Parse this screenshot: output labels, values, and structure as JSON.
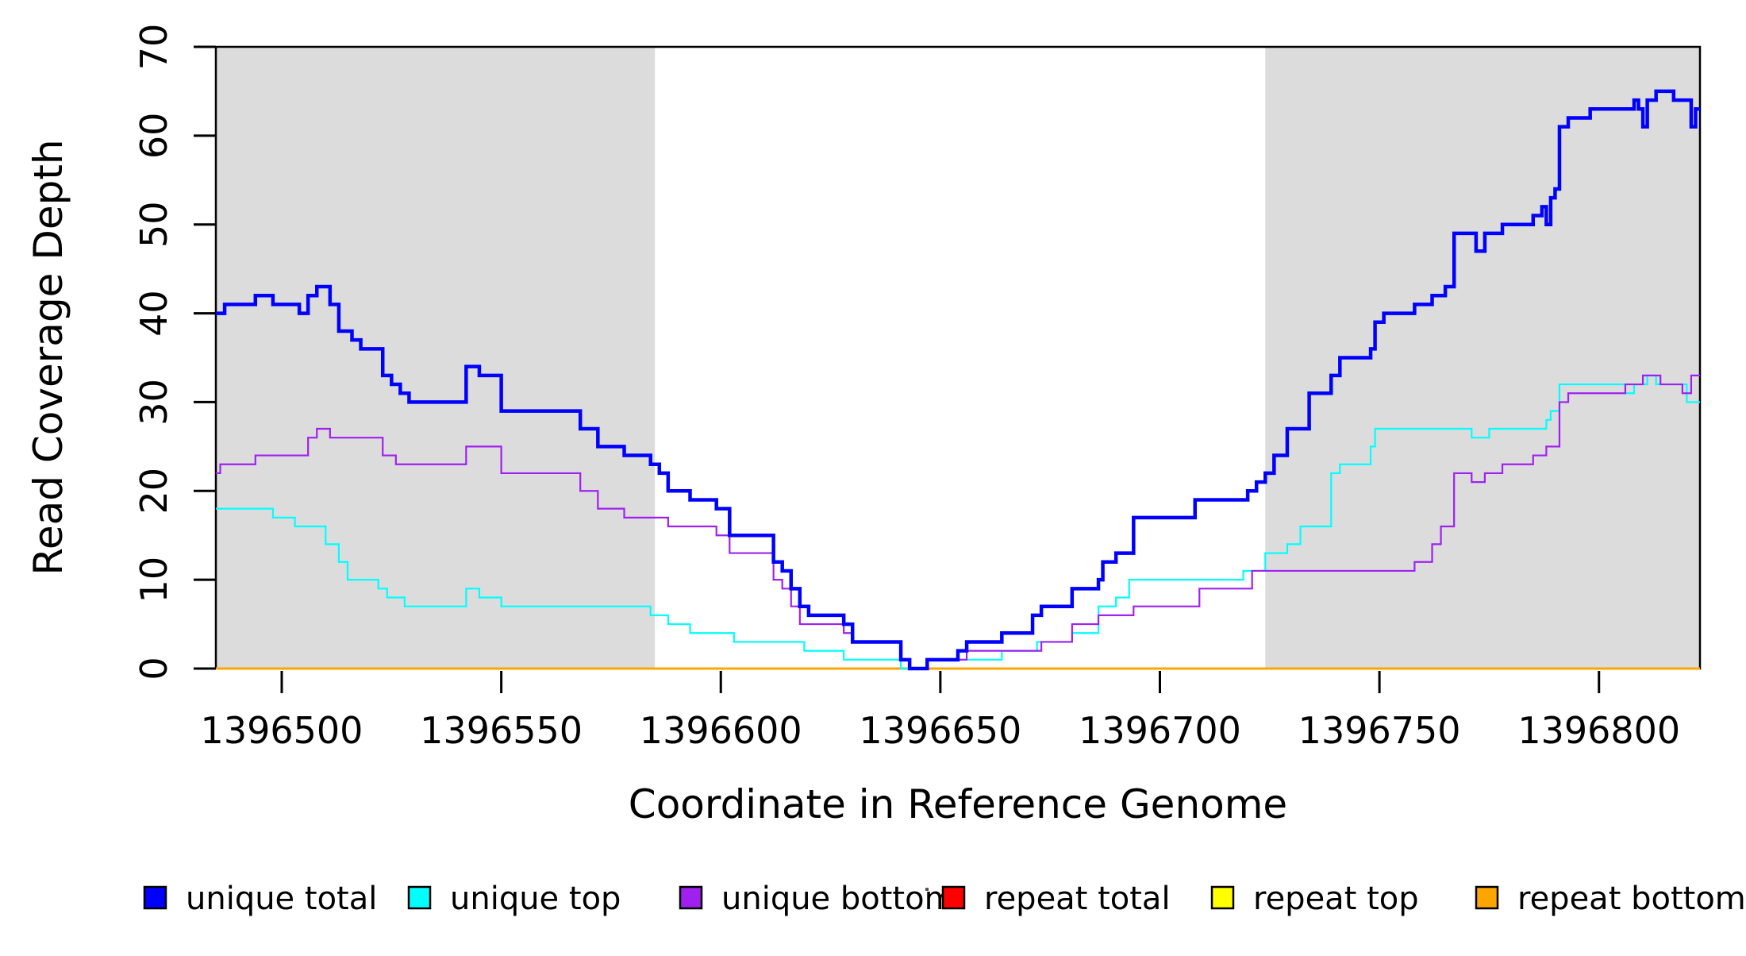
{
  "figure": {
    "background": "#ffffff",
    "plot_area_fill": "#ffffff",
    "shaded_fill": "#dcdcdc",
    "axis_color": "#000000"
  },
  "chart_data": {
    "type": "line",
    "subtype": "step",
    "title": "",
    "xlabel": "Coordinate in Reference Genome",
    "ylabel": "Read Coverage Depth",
    "xlim": [
      1396485,
      1396823
    ],
    "ylim": [
      0,
      70
    ],
    "x_ticks": [
      1396500,
      1396550,
      1396600,
      1396650,
      1396700,
      1396750,
      1396800
    ],
    "y_ticks": [
      0,
      10,
      20,
      30,
      40,
      50,
      60,
      70
    ],
    "grid": false,
    "legend_position": "bottom",
    "shaded_regions": [
      {
        "x0": 1396485,
        "x1": 1396585,
        "color": "#dcdcdc"
      },
      {
        "x0": 1396724,
        "x1": 1396823,
        "color": "#dcdcdc"
      }
    ],
    "series": [
      {
        "name": "repeat total",
        "color": "#ff0000",
        "width": 2.2,
        "steps": [
          [
            1396485,
            0
          ]
        ]
      },
      {
        "name": "repeat top",
        "color": "#ffff00",
        "width": 2.2,
        "steps": [
          [
            1396485,
            0
          ]
        ]
      },
      {
        "name": "repeat bottom",
        "color": "#ffa500",
        "width": 3,
        "steps": [
          [
            1396485,
            0
          ]
        ]
      },
      {
        "name": "unique top",
        "color": "#00ffff",
        "width": 2.2,
        "steps": [
          [
            1396485,
            18
          ],
          [
            1396498,
            17
          ],
          [
            1396503,
            16
          ],
          [
            1396510,
            14
          ],
          [
            1396513,
            12
          ],
          [
            1396515,
            10
          ],
          [
            1396522,
            9
          ],
          [
            1396524,
            8
          ],
          [
            1396528,
            7
          ],
          [
            1396542,
            9
          ],
          [
            1396545,
            8
          ],
          [
            1396550,
            7
          ],
          [
            1396584,
            6
          ],
          [
            1396588,
            5
          ],
          [
            1396593,
            4
          ],
          [
            1396603,
            3
          ],
          [
            1396619,
            2
          ],
          [
            1396628,
            1
          ],
          [
            1396641,
            0
          ],
          [
            1396647,
            1
          ],
          [
            1396664,
            2
          ],
          [
            1396672,
            3
          ],
          [
            1396680,
            4
          ],
          [
            1396686,
            7
          ],
          [
            1396690,
            8
          ],
          [
            1396693,
            10
          ],
          [
            1396719,
            11
          ],
          [
            1396724,
            13
          ],
          [
            1396729,
            14
          ],
          [
            1396732,
            16
          ],
          [
            1396739,
            22
          ],
          [
            1396741,
            23
          ],
          [
            1396748,
            25
          ],
          [
            1396749,
            27
          ],
          [
            1396771,
            26
          ],
          [
            1396775,
            27
          ],
          [
            1396788,
            28
          ],
          [
            1396789,
            29
          ],
          [
            1396791,
            32
          ],
          [
            1396806,
            31
          ],
          [
            1396808,
            32
          ],
          [
            1396811,
            33
          ],
          [
            1396813,
            32
          ],
          [
            1396820,
            30
          ]
        ]
      },
      {
        "name": "unique bottom",
        "color": "#a020f0",
        "width": 2.2,
        "steps": [
          [
            1396485,
            22
          ],
          [
            1396486,
            23
          ],
          [
            1396494,
            24
          ],
          [
            1396506,
            26
          ],
          [
            1396508,
            27
          ],
          [
            1396511,
            26
          ],
          [
            1396523,
            24
          ],
          [
            1396526,
            23
          ],
          [
            1396542,
            25
          ],
          [
            1396550,
            22
          ],
          [
            1396568,
            20
          ],
          [
            1396572,
            18
          ],
          [
            1396578,
            17
          ],
          [
            1396588,
            16
          ],
          [
            1396599,
            15
          ],
          [
            1396602,
            13
          ],
          [
            1396612,
            10
          ],
          [
            1396614,
            9
          ],
          [
            1396616,
            7
          ],
          [
            1396618,
            5
          ],
          [
            1396628,
            4
          ],
          [
            1396630,
            3
          ],
          [
            1396641,
            1
          ],
          [
            1396643,
            0
          ],
          [
            1396647,
            1
          ],
          [
            1396656,
            2
          ],
          [
            1396673,
            3
          ],
          [
            1396680,
            5
          ],
          [
            1396686,
            6
          ],
          [
            1396694,
            7
          ],
          [
            1396709,
            9
          ],
          [
            1396721,
            11
          ],
          [
            1396758,
            12
          ],
          [
            1396762,
            14
          ],
          [
            1396764,
            16
          ],
          [
            1396767,
            22
          ],
          [
            1396771,
            21
          ],
          [
            1396774,
            22
          ],
          [
            1396778,
            23
          ],
          [
            1396785,
            24
          ],
          [
            1396788,
            25
          ],
          [
            1396791,
            30
          ],
          [
            1396793,
            31
          ],
          [
            1396806,
            32
          ],
          [
            1396810,
            33
          ],
          [
            1396814,
            32
          ],
          [
            1396819,
            31
          ],
          [
            1396821,
            33
          ]
        ]
      },
      {
        "name": "unique total",
        "color": "#0000ff",
        "width": 4.5,
        "steps": [
          [
            1396485,
            40
          ],
          [
            1396487,
            41
          ],
          [
            1396494,
            42
          ],
          [
            1396498,
            41
          ],
          [
            1396504,
            40
          ],
          [
            1396506,
            42
          ],
          [
            1396508,
            43
          ],
          [
            1396511,
            41
          ],
          [
            1396513,
            38
          ],
          [
            1396516,
            37
          ],
          [
            1396518,
            36
          ],
          [
            1396523,
            33
          ],
          [
            1396525,
            32
          ],
          [
            1396527,
            31
          ],
          [
            1396529,
            30
          ],
          [
            1396542,
            34
          ],
          [
            1396545,
            33
          ],
          [
            1396550,
            29
          ],
          [
            1396568,
            27
          ],
          [
            1396572,
            25
          ],
          [
            1396578,
            24
          ],
          [
            1396584,
            23
          ],
          [
            1396586,
            22
          ],
          [
            1396588,
            20
          ],
          [
            1396593,
            19
          ],
          [
            1396599,
            18
          ],
          [
            1396602,
            15
          ],
          [
            1396612,
            12
          ],
          [
            1396614,
            11
          ],
          [
            1396616,
            9
          ],
          [
            1396618,
            7
          ],
          [
            1396620,
            6
          ],
          [
            1396628,
            5
          ],
          [
            1396630,
            3
          ],
          [
            1396641,
            1
          ],
          [
            1396643,
            0
          ],
          [
            1396647,
            1
          ],
          [
            1396654,
            2
          ],
          [
            1396656,
            3
          ],
          [
            1396664,
            4
          ],
          [
            1396671,
            6
          ],
          [
            1396673,
            7
          ],
          [
            1396680,
            9
          ],
          [
            1396686,
            10
          ],
          [
            1396687,
            12
          ],
          [
            1396690,
            13
          ],
          [
            1396694,
            17
          ],
          [
            1396708,
            19
          ],
          [
            1396720,
            20
          ],
          [
            1396722,
            21
          ],
          [
            1396724,
            22
          ],
          [
            1396726,
            24
          ],
          [
            1396729,
            27
          ],
          [
            1396734,
            31
          ],
          [
            1396739,
            33
          ],
          [
            1396741,
            35
          ],
          [
            1396748,
            36
          ],
          [
            1396749,
            39
          ],
          [
            1396751,
            40
          ],
          [
            1396758,
            41
          ],
          [
            1396762,
            42
          ],
          [
            1396765,
            43
          ],
          [
            1396767,
            49
          ],
          [
            1396772,
            47
          ],
          [
            1396774,
            49
          ],
          [
            1396778,
            50
          ],
          [
            1396785,
            51
          ],
          [
            1396787,
            52
          ],
          [
            1396788,
            50
          ],
          [
            1396789,
            53
          ],
          [
            1396790,
            54
          ],
          [
            1396791,
            61
          ],
          [
            1396793,
            62
          ],
          [
            1396798,
            63
          ],
          [
            1396808,
            64
          ],
          [
            1396809,
            63
          ],
          [
            1396810,
            61
          ],
          [
            1396811,
            64
          ],
          [
            1396813,
            65
          ],
          [
            1396817,
            64
          ],
          [
            1396821,
            61
          ],
          [
            1396822,
            63
          ]
        ]
      }
    ],
    "legend": [
      {
        "label": "unique total",
        "color": "#0000ff"
      },
      {
        "label": "unique top",
        "color": "#00ffff"
      },
      {
        "label": "unique bottom",
        "color": "#a020f0"
      },
      {
        "label": "repeat total",
        "color": "#ff0000"
      },
      {
        "label": "repeat top",
        "color": "#ffff00"
      },
      {
        "label": "repeat bottom",
        "color": "#ffa500"
      }
    ]
  }
}
